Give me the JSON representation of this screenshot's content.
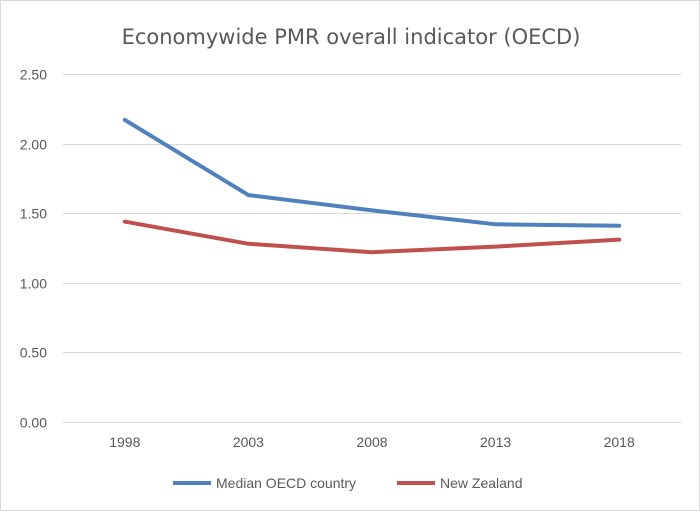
{
  "chart_data": {
    "type": "line",
    "title": "Economywide PMR overall indicator (OECD)",
    "xlabel": "",
    "ylabel": "",
    "categories": [
      "1998",
      "2003",
      "2008",
      "2013",
      "2018"
    ],
    "ylim": [
      0,
      2.5
    ],
    "yticks": [
      "0.00",
      "0.50",
      "1.00",
      "1.50",
      "2.00",
      "2.50"
    ],
    "grid": true,
    "legend_position": "bottom",
    "series": [
      {
        "name": "Median OECD country",
        "color": "#4f81bd",
        "values": [
          2.17,
          1.63,
          1.52,
          1.42,
          1.41
        ]
      },
      {
        "name": "New Zealand",
        "color": "#c0504d",
        "values": [
          1.44,
          1.28,
          1.22,
          1.26,
          1.31
        ]
      }
    ]
  }
}
